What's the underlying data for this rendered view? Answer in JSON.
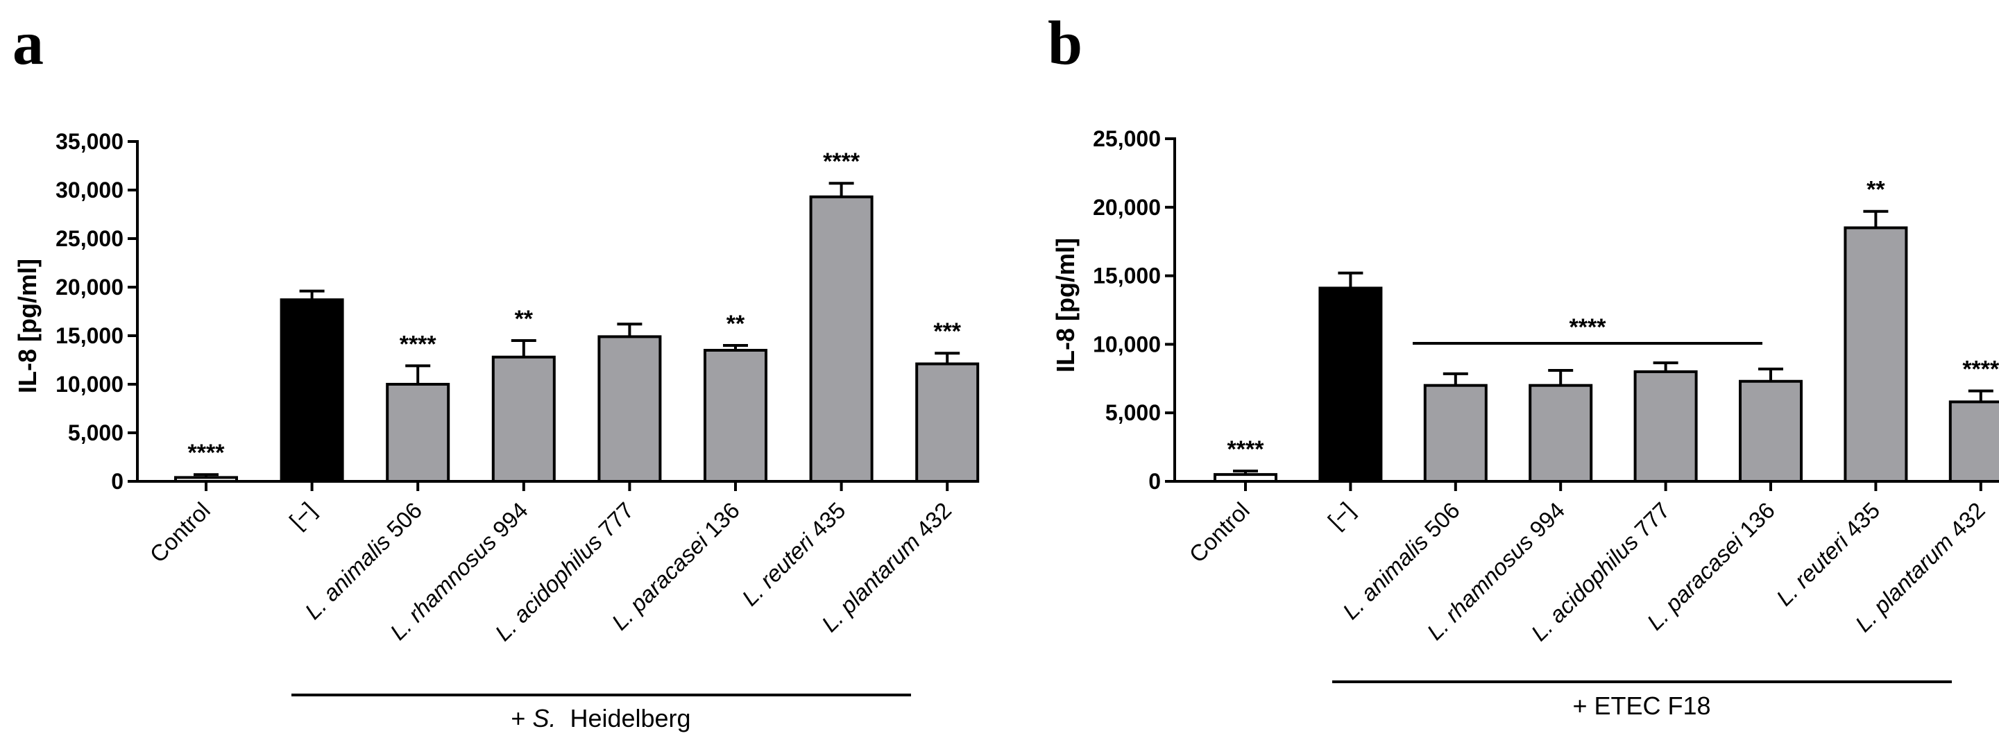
{
  "chart_data": [
    {
      "type": "bar",
      "panel": "a",
      "ylabel": "IL-8 [pg/ml]",
      "ylim": [
        0,
        35000
      ],
      "yticks": [
        "0",
        "5,000",
        "10,000",
        "15,000",
        "20,000",
        "25,000",
        "30,000",
        "35,000"
      ],
      "ytick_values": [
        0,
        5000,
        10000,
        15000,
        20000,
        25000,
        30000,
        35000
      ],
      "categories": [
        {
          "prefix": "",
          "italic": "",
          "plain": "Control"
        },
        {
          "prefix": "",
          "italic": "",
          "plain": "[−]"
        },
        {
          "prefix": "",
          "italic": "L. animalis",
          "plain": " 506"
        },
        {
          "prefix": "",
          "italic": "L. rhamnosus",
          "plain": " 994"
        },
        {
          "prefix": "",
          "italic": "L. acidophilus",
          "plain": " 777"
        },
        {
          "prefix": "",
          "italic": "L. paracasei",
          "plain": " 136"
        },
        {
          "prefix": "",
          "italic": "L. reuteri",
          "plain": " 435"
        },
        {
          "prefix": "",
          "italic": "L. plantarum",
          "plain": " 432"
        }
      ],
      "values": [
        400,
        18700,
        10000,
        12800,
        14900,
        13500,
        29300,
        12100
      ],
      "errors": [
        300,
        900,
        1900,
        1700,
        1300,
        500,
        1400,
        1100
      ],
      "bar_colors": [
        "#ffffff",
        "#000000",
        "#a0a0a4",
        "#a0a0a4",
        "#a0a0a4",
        "#a0a0a4",
        "#a0a0a4",
        "#a0a0a4"
      ],
      "significance": [
        "****",
        "",
        "****",
        "**",
        "",
        "**",
        "****",
        "***"
      ],
      "group_label": {
        "prefix": "+ ",
        "italic": "S.",
        "plain": "  Heidelberg"
      }
    },
    {
      "type": "bar",
      "panel": "b",
      "ylabel": "IL-8 [pg/ml]",
      "ylim": [
        0,
        25000
      ],
      "yticks": [
        "0",
        "5,000",
        "10,000",
        "15,000",
        "20,000",
        "25,000"
      ],
      "ytick_values": [
        0,
        5000,
        10000,
        15000,
        20000,
        25000
      ],
      "categories": [
        {
          "prefix": "",
          "italic": "",
          "plain": "Control"
        },
        {
          "prefix": "",
          "italic": "",
          "plain": "[−]"
        },
        {
          "prefix": "",
          "italic": "L. animalis",
          "plain": " 506"
        },
        {
          "prefix": "",
          "italic": "L. rhamnosus",
          "plain": " 994"
        },
        {
          "prefix": "",
          "italic": "L. acidophilus",
          "plain": " 777"
        },
        {
          "prefix": "",
          "italic": "L. paracasei",
          "plain": " 136"
        },
        {
          "prefix": "",
          "italic": "L. reuteri",
          "plain": " 435"
        },
        {
          "prefix": "",
          "italic": "L. plantarum",
          "plain": " 432"
        }
      ],
      "values": [
        500,
        14100,
        7000,
        7000,
        8000,
        7300,
        18500,
        5800
      ],
      "errors": [
        250,
        1100,
        850,
        1100,
        650,
        900,
        1200,
        800
      ],
      "bar_colors": [
        "#ffffff",
        "#000000",
        "#a0a0a4",
        "#a0a0a4",
        "#a0a0a4",
        "#a0a0a4",
        "#a0a0a4",
        "#a0a0a4"
      ],
      "significance": [
        "****",
        "",
        "",
        "",
        "",
        "",
        "**",
        "****"
      ],
      "bracket_significance": "****",
      "group_label": {
        "prefix": "+ ",
        "italic": "",
        "plain": "ETEC F18"
      }
    }
  ]
}
